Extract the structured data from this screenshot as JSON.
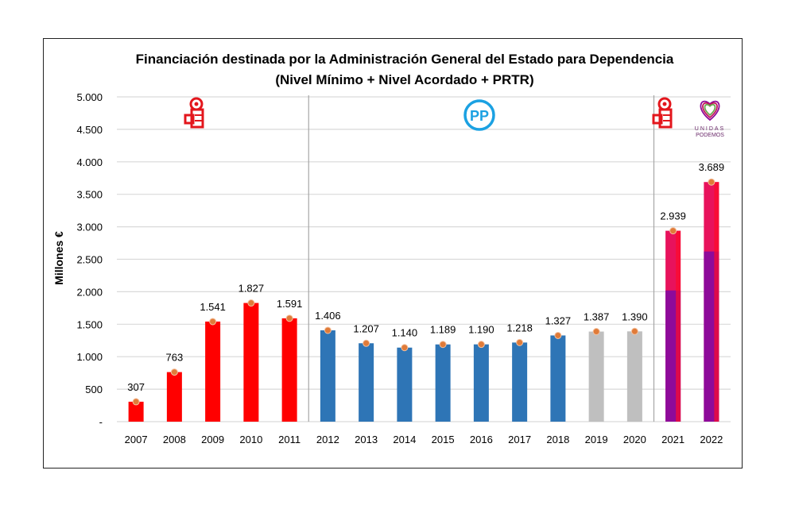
{
  "chart_data": {
    "type": "bar",
    "title": "Financiación destinada por la Administración General del Estado para Dependencia",
    "subtitle": "(Nivel Mínimo + Nivel Acordado + PRTR)",
    "xlabel": "",
    "ylabel": "Millones €",
    "ylim": [
      0,
      5000
    ],
    "yticks": [
      "-",
      "500",
      "1.000",
      "1.500",
      "2.000",
      "2.500",
      "3.000",
      "3.500",
      "4.000",
      "4.500",
      "5.000"
    ],
    "grid": true,
    "categories": [
      "2007",
      "2008",
      "2009",
      "2010",
      "2011",
      "2012",
      "2013",
      "2014",
      "2015",
      "2016",
      "2017",
      "2018",
      "2019",
      "2020",
      "2021",
      "2022"
    ],
    "values": [
      307,
      763,
      1541,
      1827,
      1591,
      1406,
      1207,
      1140,
      1189,
      1190,
      1218,
      1327,
      1387,
      1390,
      2939,
      3689
    ],
    "labels": [
      "307",
      "763",
      "1.541",
      "1.827",
      "1.591",
      "1.406",
      "1.207",
      "1.140",
      "1.189",
      "1.190",
      "1.218",
      "1.327",
      "1.387",
      "1.390",
      "2.939",
      "3.689"
    ],
    "lower_segment_values": [
      null,
      null,
      null,
      null,
      null,
      null,
      null,
      null,
      null,
      null,
      null,
      null,
      null,
      null,
      2020,
      2620
    ],
    "periods": [
      {
        "party": "PSOE",
        "from": "2007",
        "to": "2011",
        "color": "#ff0000",
        "logo": "psoe-rose-fist"
      },
      {
        "party": "PP",
        "from": "2012",
        "to": "2018",
        "color": "#2e75b6",
        "logo": "pp-logo"
      },
      {
        "party": "PP",
        "from": "2019",
        "to": "2020",
        "color": "#bfbfbf"
      },
      {
        "party": "PSOE + Unidas Podemos",
        "from": "2021",
        "to": "2022",
        "color": "#e8125c",
        "lower_color": "#8e0a9a",
        "logo": "psoe-and-unidas-podemos"
      }
    ],
    "logo_text": {
      "pp": "PP",
      "unidas": "UNIDAS",
      "podemos": "PODEMOS"
    },
    "marker_color": "#e07b39"
  }
}
